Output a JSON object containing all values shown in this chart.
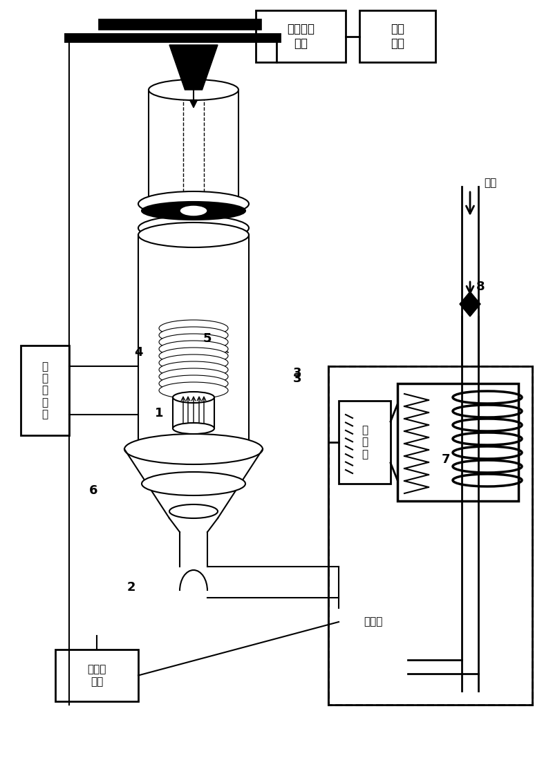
{
  "fig_width": 8.0,
  "fig_height": 11.1,
  "bg_color": "#ffffff",
  "line_color": "#000000",
  "box_fill": "#ffffff",
  "labels": {
    "manual_pressure": "手动加压\n装置",
    "gas_supply": "供气\n装置",
    "gas": "气体",
    "compressor": "压\n缩\n机",
    "temp_controller": "温度控\n制器",
    "hot_film": "热电膜",
    "nmr": "核\n磁\n共\n振\n仪",
    "num_1": "1",
    "num_2": "2",
    "num_3": "3",
    "num_4": "4",
    "num_5": "5",
    "num_6": "6",
    "num_7": "7",
    "num_8": "8"
  }
}
